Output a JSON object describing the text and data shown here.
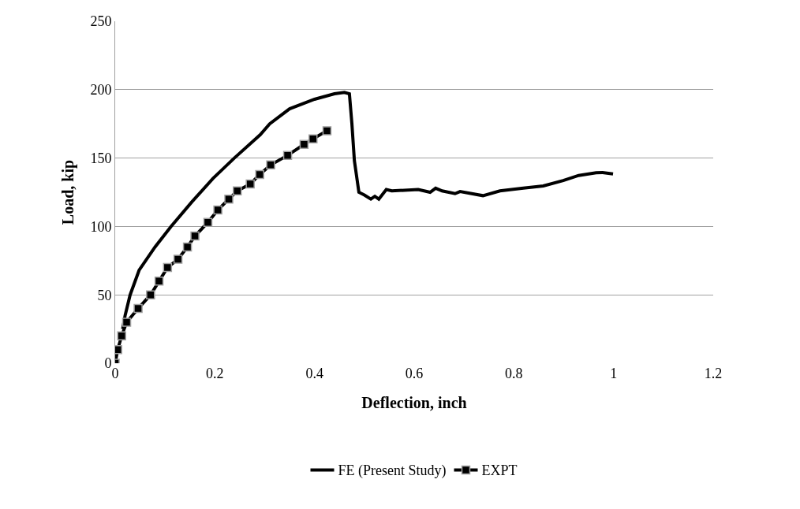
{
  "chart_data": {
    "type": "line",
    "xlabel": "Deflection, inch",
    "ylabel": "Load, kip",
    "xlim": [
      0,
      1.2
    ],
    "xticks": [
      0,
      0.2,
      0.4,
      0.6,
      0.8,
      1,
      1.2
    ],
    "ylim": [
      0,
      250
    ],
    "yticks": [
      0,
      50,
      100,
      150,
      200,
      250
    ],
    "grid": "y",
    "legend": "bottom",
    "line_style": "solid",
    "series": [
      {
        "name": "FE (Present Study)",
        "color": "#000000",
        "marker": "none",
        "x": [
          0.015,
          0.02,
          0.03,
          0.048,
          0.08,
          0.112,
          0.154,
          0.196,
          0.239,
          0.291,
          0.31,
          0.35,
          0.4,
          0.44,
          0.46,
          0.47,
          0.475,
          0.48,
          0.489,
          0.5,
          0.513,
          0.521,
          0.529,
          0.544,
          0.555,
          0.608,
          0.632,
          0.643,
          0.656,
          0.682,
          0.692,
          0.738,
          0.772,
          0.819,
          0.859,
          0.899,
          0.93,
          0.965,
          0.978,
          0.999
        ],
        "values": [
          25,
          35,
          50,
          68,
          85,
          100,
          118,
          135,
          150,
          167,
          175,
          186,
          193,
          197,
          198,
          197,
          175,
          148,
          125,
          123,
          120,
          122,
          120,
          127,
          126,
          127,
          125,
          128,
          126,
          124,
          125.5,
          122.5,
          126,
          128,
          129.6,
          133.6,
          137.3,
          139.2,
          139.4,
          138.4
        ]
      },
      {
        "name": "EXPT",
        "color": "#000000",
        "marker": "square",
        "x": [
          0,
          0.005,
          0.013,
          0.023,
          0.046,
          0.071,
          0.088,
          0.105,
          0.126,
          0.145,
          0.16,
          0.186,
          0.206,
          0.228,
          0.245,
          0.271,
          0.29,
          0.312,
          0.346,
          0.379,
          0.397,
          0.425
        ],
        "values": [
          0,
          10,
          20,
          30,
          40,
          50,
          60,
          70,
          76,
          85,
          93,
          103,
          112,
          120,
          126,
          131,
          138,
          145,
          152,
          160,
          164,
          170
        ]
      }
    ]
  }
}
